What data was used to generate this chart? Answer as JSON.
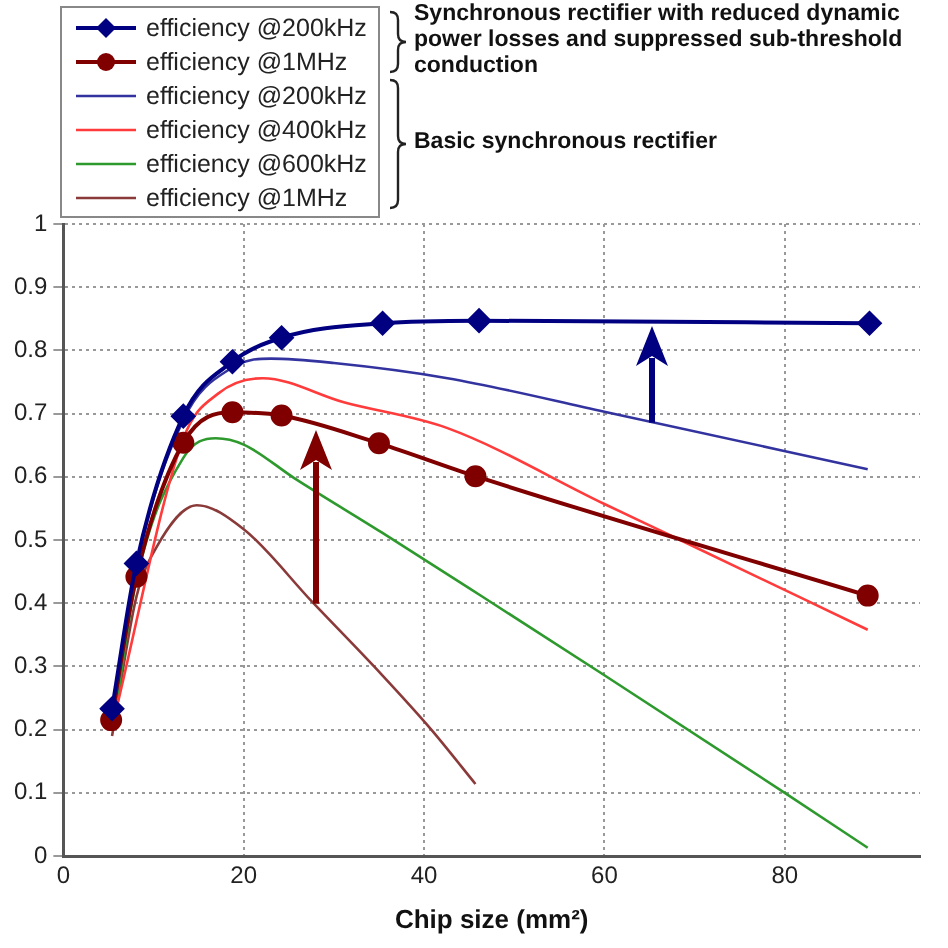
{
  "chart_data": {
    "type": "line",
    "xlabel": "Chip size (mm²)",
    "xlim": [
      0,
      95
    ],
    "xticks": [
      0,
      20,
      40,
      60,
      80
    ],
    "ylim": [
      0,
      1
    ],
    "yticks": [
      0,
      0.1,
      0.2,
      0.3,
      0.4,
      0.5,
      0.6,
      0.7,
      0.8,
      0.9,
      1
    ],
    "grid": true,
    "legend": "top left",
    "annotations": [
      "Synchronous rectifier with reduced dynamic power losses and suppressed sub-threshold conduction",
      "Basic synchronous rectifier"
    ],
    "series": [
      {
        "name": "efficiency @200kHz",
        "color": "#000080",
        "marker": "diamond",
        "x": [
          5.4,
          8.1,
          13.3,
          18.75,
          24.2,
          35.4,
          46.1,
          89.4
        ],
        "values": [
          0.233,
          0.463,
          0.696,
          0.782,
          0.82,
          0.843,
          0.847,
          0.843
        ]
      },
      {
        "name": "efficiency @1MHz",
        "color": "#800000",
        "marker": "circle",
        "x": [
          5.3,
          8.1,
          13.3,
          18.75,
          24.2,
          35,
          45.7,
          89.2
        ],
        "values": [
          0.215,
          0.442,
          0.654,
          0.702,
          0.697,
          0.653,
          0.601,
          0.412
        ]
      },
      {
        "name": "efficiency @200kHz",
        "color": "#3333a0",
        "marker": "none",
        "x": [
          5.5,
          8,
          13.3,
          18.75,
          23,
          30,
          42.6,
          60,
          89.2
        ],
        "values": [
          0.22,
          0.45,
          0.69,
          0.773,
          0.787,
          0.78,
          0.756,
          0.703,
          0.612
        ]
      },
      {
        "name": "efficiency @400kHz",
        "color": "#ff3b3b",
        "marker": "none",
        "x": [
          5.5,
          8,
          13.3,
          17.2,
          22.1,
          31.1,
          42.6,
          60,
          68.4,
          89.2
        ],
        "values": [
          0.21,
          null,
          0.66,
          0.732,
          0.756,
          0.718,
          0.677,
          0.557,
          0.5,
          0.358
        ]
      },
      {
        "name": "efficiency @600kHz",
        "color": "#2e9a2e",
        "marker": "none",
        "x": [
          5.5,
          8,
          13.3,
          16.9,
          20,
          25.6,
          35.3,
          46.4,
          60,
          80,
          89.2
        ],
        "values": [
          0.2,
          0.43,
          0.63,
          0.661,
          0.651,
          0.598,
          0.512,
          0.411,
          0.286,
          0.1,
          0.013
        ]
      },
      {
        "name": "efficiency @1MHz",
        "color": "#8b3a3a",
        "marker": "none",
        "x": [
          5.4,
          8.1,
          10.3,
          14.8,
          20,
          27.6,
          35.3,
          40.8,
          45.7
        ],
        "values": [
          0.19,
          0.41,
          0.488,
          0.555,
          0.517,
          0.402,
          0.287,
          0.2,
          0.114
        ]
      }
    ]
  }
}
